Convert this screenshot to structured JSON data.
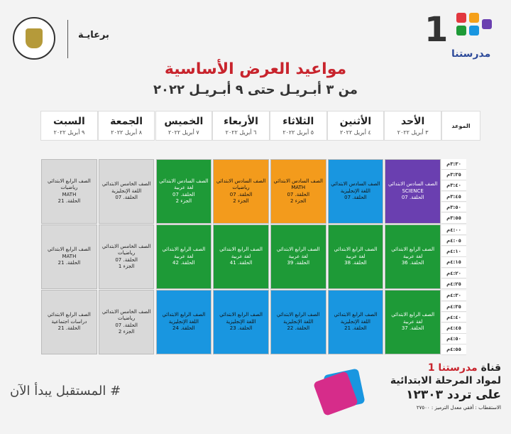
{
  "header": {
    "sponsor_label": "برعايـة",
    "logo_number": "1",
    "logo_text": "مدرستنا"
  },
  "title": "مواعيد العرض الأساسية",
  "subtitle": "من ٣ أبـريـل حتى ٩ أبـريـل ٢٠٢٢",
  "time_header": "الموعد",
  "days": [
    {
      "name": "الأحد",
      "date": "٣ أبريل ٢٠٢٢"
    },
    {
      "name": "الأثنين",
      "date": "٤ أبريل ٢٠٢٢"
    },
    {
      "name": "الثلاثاء",
      "date": "٥ أبريل ٢٠٢٢"
    },
    {
      "name": "الأربعاء",
      "date": "٦ أبريل ٢٠٢٢"
    },
    {
      "name": "الخميس",
      "date": "٧ أبريل ٢٠٢٢"
    },
    {
      "name": "الجمعة",
      "date": "٨ أبريل ٢٠٢٢"
    },
    {
      "name": "السبت",
      "date": "٩ أبريل ٢٠٢٢"
    }
  ],
  "times": [
    "٣:٣٠م",
    "٣:٣٥م",
    "٣:٤٠م",
    "٣:٤٥م",
    "٣:٥٠م",
    "٣:٥٥م",
    "٤:٠٠م",
    "٤:٠٥م",
    "٤:١٠م",
    "٤:١٥م",
    "٤:٢٠م",
    "٤:٢٥م",
    "٤:٣٠م",
    "٤:٣٥م",
    "٤:٤٠م",
    "٤:٤٥م",
    "٤:٥٠م",
    "٤:٥٥م"
  ],
  "slots": [
    [
      {
        "color": "purple",
        "lines": [
          "الصف السادس الابتدائي",
          "SCIENCE",
          "الحلقة. 07"
        ]
      },
      {
        "color": "blue",
        "lines": [
          "الصف السادس الابتدائي",
          "اللغة الإنجليزية",
          "الحلقة. 07"
        ]
      },
      {
        "color": "orange",
        "lines": [
          "الصف السادس الابتدائي",
          "MATH",
          "الحلقة. 07",
          "الجزء 2"
        ]
      },
      {
        "color": "orange",
        "lines": [
          "الصف السادس الابتدائي",
          "رياضيات",
          "الحلقة. 07",
          "الجزء 2"
        ]
      },
      {
        "color": "green",
        "lines": [
          "الصف السادس الابتدائي",
          "لغة عربية",
          "الحلقة. 07",
          "الجزء 2"
        ]
      },
      {
        "color": "gray",
        "lines": [
          "الصف الخامس الابتدائي",
          "اللغة الإنجليزية",
          "الحلقة. 07"
        ]
      },
      {
        "color": "gray",
        "lines": [
          "الصف الرابع الابتدائي",
          "رياضيات",
          "MATH",
          "الحلقة. 21"
        ]
      }
    ],
    [
      {
        "color": "green",
        "lines": [
          "الصف الرابع الابتدائي",
          "لغة عربية",
          "الحلقة. 36"
        ]
      },
      {
        "color": "green",
        "lines": [
          "الصف الرابع الابتدائي",
          "لغة عربية",
          "الحلقة. 38"
        ]
      },
      {
        "color": "green",
        "lines": [
          "الصف الرابع الابتدائي",
          "لغة عربية",
          "الحلقة. 39"
        ]
      },
      {
        "color": "green",
        "lines": [
          "الصف الرابع الابتدائي",
          "لغة عربية",
          "الحلقة. 41"
        ]
      },
      {
        "color": "green",
        "lines": [
          "الصف الرابع الابتدائي",
          "لغة عربية",
          "الحلقة. 42"
        ]
      },
      {
        "color": "gray",
        "lines": [
          "الصف الخامس الابتدائي",
          "رياضيات",
          "الحلقة. 07",
          "الجزء 1"
        ]
      },
      {
        "color": "gray",
        "lines": [
          "الصف الرابع الابتدائي",
          "MATH",
          "الحلقة. 21"
        ]
      }
    ],
    [
      {
        "color": "green",
        "lines": [
          "الصف الرابع الابتدائي",
          "لغة عربية",
          "الحلقة. 37"
        ]
      },
      {
        "color": "blue",
        "lines": [
          "الصف الرابع الابتدائي",
          "اللغة الإنجليزية",
          "الحلقة. 21"
        ]
      },
      {
        "color": "blue",
        "lines": [
          "الصف الرابع الابتدائي",
          "اللغة الإنجليزية",
          "الحلقة. 22"
        ]
      },
      {
        "color": "blue",
        "lines": [
          "الصف الرابع الابتدائي",
          "اللغة الإنجليزية",
          "الحلقة. 23"
        ]
      },
      {
        "color": "blue",
        "lines": [
          "الصف الرابع الابتدائي",
          "اللغة الإنجليزية",
          "الحلقة. 24"
        ]
      },
      {
        "color": "gray",
        "lines": [
          "الصف الخامس الابتدائي",
          "رياضيات",
          "الحلقة. 07",
          "الجزء 2"
        ]
      },
      {
        "color": "gray",
        "lines": [
          "الصف الرابع الابتدائي",
          "دراسات اجتماعية",
          "الحلقة. 21"
        ]
      }
    ]
  ],
  "footer": {
    "slogan": "# المستقبل يبدأ الآن",
    "channel_prefix": "قناة ",
    "channel_name": "مدرستنا 1",
    "channel_desc": "لمواد المرحلة الابتدائية",
    "frequency": "على تردد ١٢٣٠٣",
    "reception": "الاستقطاب : أفقي معدل الترميز : ٢٧٥٠٠"
  },
  "colors": {
    "purple": "#6a3fb0",
    "blue": "#1996e0",
    "orange": "#f39b1c",
    "green": "#1e9a37",
    "gray": "#d9d9d9",
    "title_red": "#c8242d"
  }
}
